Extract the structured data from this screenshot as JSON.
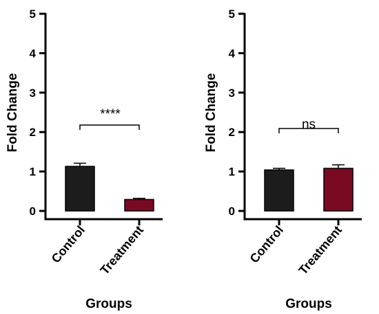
{
  "chart_data": [
    {
      "type": "bar",
      "ylabel": "Fold Change",
      "xlabel": "Groups",
      "categories": [
        "Control",
        "Treatment"
      ],
      "values": [
        1.13,
        0.29
      ],
      "errors": [
        0.08,
        0.03
      ],
      "bar_colors": [
        "#1c1c1c",
        "#7a0a22"
      ],
      "ylim": [
        0,
        5
      ],
      "yticks": [
        "0",
        "1",
        "2",
        "3",
        "4",
        "5"
      ],
      "significance": "****"
    },
    {
      "type": "bar",
      "ylabel": "Fold Change",
      "xlabel": "Groups",
      "categories": [
        "Control",
        "Treatment"
      ],
      "values": [
        1.04,
        1.08
      ],
      "errors": [
        0.04,
        0.09
      ],
      "bar_colors": [
        "#1c1c1c",
        "#7a0a22"
      ],
      "ylim": [
        0,
        5
      ],
      "yticks": [
        "0",
        "1",
        "2",
        "3",
        "4",
        "5"
      ],
      "significance": "ns"
    }
  ]
}
